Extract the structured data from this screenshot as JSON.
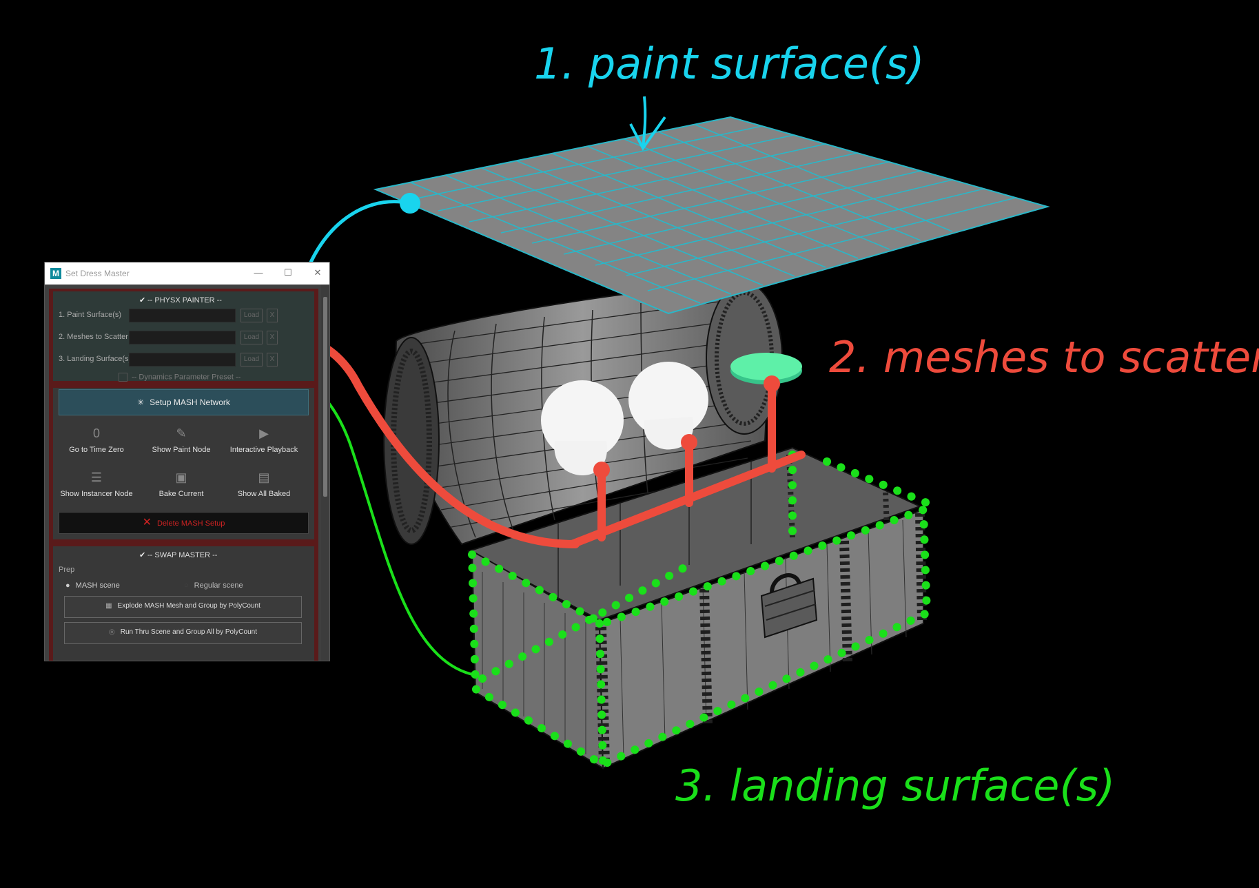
{
  "annotations": {
    "step1": "1. paint surface(s)",
    "step2": "2. meshes to scatter",
    "step3": "3. landing surface(s)",
    "colors": {
      "step1": "#19d4ee",
      "step2": "#ee4b3c",
      "step3": "#1ae01a"
    }
  },
  "window": {
    "title": "Set Dress Master",
    "app_icon": "M",
    "controls": {
      "minimize": "—",
      "maximize": "☐",
      "close": "✕"
    }
  },
  "physx": {
    "header": "--  PHYSX PAINTER  --",
    "checked": true,
    "rows": [
      {
        "label": "1. Paint Surface(s)",
        "load": "Load",
        "clear": "X"
      },
      {
        "label": "2. Meshes to Scatter",
        "load": "Load",
        "clear": "X"
      },
      {
        "label": "3. Landing Surface(s)",
        "load": "Load",
        "clear": "X"
      }
    ],
    "preset": "--  Dynamics Parameter Preset  --"
  },
  "setup_button": "Setup MASH Network",
  "tools": [
    {
      "label": "Go to Time Zero",
      "icon": "time-zero-icon"
    },
    {
      "label": "Show Paint Node",
      "icon": "brush-icon"
    },
    {
      "label": "Interactive Playback",
      "icon": "play-icon"
    },
    {
      "label": "Show Instancer Node",
      "icon": "list-icon"
    },
    {
      "label": "Bake Current",
      "icon": "bake-icon"
    },
    {
      "label": "Show All Baked",
      "icon": "baked-stack-icon"
    }
  ],
  "delete_button": "Delete MASH Setup",
  "swap": {
    "header": "--  SWAP MASTER  --",
    "checked": true,
    "prep_label": "Prep",
    "options": [
      "MASH scene",
      "Regular scene"
    ],
    "selected_option": "MASH scene",
    "buttons": [
      "Explode MASH Mesh and Group by PolyCount",
      "Run Thru Scene and Group All by PolyCount"
    ]
  }
}
